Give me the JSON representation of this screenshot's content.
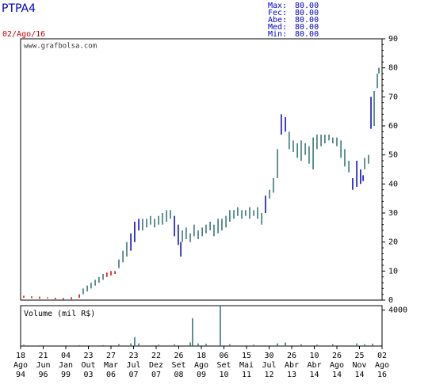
{
  "header": {
    "date": "02/Ago/16",
    "stats": [
      {
        "label": "Max:",
        "value": "80.00"
      },
      {
        "label": "Fec:",
        "value": "80.00"
      },
      {
        "label": "Abe:",
        "value": "80.00"
      },
      {
        "label": "Med:",
        "value": "80.00"
      },
      {
        "label": "Min:",
        "value": "80.00"
      }
    ]
  },
  "chart_data": [
    {
      "type": "hilo",
      "title": "PTPA4",
      "watermark": "www.grafbolsa.com",
      "xlim": [
        0,
        16
      ],
      "ylim": [
        0,
        90
      ],
      "yticks": [
        0,
        10,
        20,
        30,
        40,
        50,
        60,
        70,
        80,
        90
      ],
      "series": [
        {
          "color": "#cc0000",
          "x": [
            0.14,
            0.49,
            0.84,
            1.19,
            1.54,
            1.89,
            2.25,
            2.6,
            3.82,
            4.0,
            4.18
          ],
          "high": [
            1.5,
            1.3,
            1.2,
            1.0,
            0.8,
            0.7,
            1.0,
            2.0,
            9.5,
            10,
            10
          ],
          "low": [
            0.8,
            0.7,
            0.5,
            0.6,
            0.3,
            0.2,
            0.3,
            0.8,
            8,
            8.5,
            9
          ]
        },
        {
          "color": "#2f6f6f",
          "x": [
            2.77,
            2.95,
            3.12,
            3.3,
            3.47,
            3.65,
            4.35,
            4.53,
            4.7,
            5.4,
            5.58,
            5.75,
            5.93,
            6.11,
            6.28,
            6.46,
            6.63,
            7.16,
            7.33,
            7.51,
            7.68,
            7.86,
            8.04,
            8.21,
            8.39,
            8.56,
            8.74,
            8.91,
            9.09,
            9.26,
            9.44,
            9.61,
            9.79,
            9.96,
            10.14,
            10.32,
            10.49,
            10.67,
            11.02,
            11.19,
            11.37,
            11.89,
            12.07,
            12.25,
            12.42,
            12.6,
            12.77,
            12.95,
            13.12,
            13.3,
            13.47,
            13.65,
            13.82,
            14.0,
            14.18,
            14.35,
            14.53,
            15.23,
            15.4,
            15.65,
            15.79,
            15.86
          ],
          "high": [
            4,
            5,
            6,
            7,
            8,
            9,
            14,
            17,
            20,
            28,
            28,
            29,
            28,
            29,
            30,
            31,
            31,
            24,
            25,
            23,
            26,
            24,
            25,
            26,
            27,
            26,
            28,
            28,
            29,
            31,
            31,
            32,
            31,
            31,
            32,
            31,
            32,
            30,
            38,
            42,
            52,
            58,
            55,
            54,
            55,
            54,
            53,
            56,
            57,
            57,
            57,
            57,
            56,
            56,
            55,
            52,
            48,
            49,
            50,
            72,
            78,
            80
          ],
          "low": [
            2,
            3,
            4,
            5,
            6,
            7,
            11,
            13,
            15,
            24,
            25,
            26,
            25,
            26,
            26,
            27,
            28,
            20,
            21,
            20,
            22,
            21,
            22,
            23,
            24,
            22,
            23,
            24,
            25,
            27,
            28,
            29,
            28,
            29,
            28,
            29,
            28,
            26,
            35,
            37,
            42,
            52,
            51,
            49,
            48,
            50,
            47,
            45,
            52,
            53,
            54,
            55,
            54,
            53,
            49,
            46,
            44,
            45,
            47,
            60,
            73,
            78
          ]
        },
        {
          "color": "#0000cc",
          "x": [
            4.88,
            5.05,
            5.23,
            6.81,
            6.98,
            7.09,
            10.84,
            11.54,
            11.72,
            14.7,
            14.88,
            15.05,
            15.16,
            15.51
          ],
          "high": [
            23,
            27,
            28,
            29,
            26,
            20,
            36,
            64,
            63,
            42,
            48,
            45,
            43,
            70
          ],
          "low": [
            17,
            20,
            24,
            22,
            19,
            15,
            30,
            57,
            58,
            38,
            39,
            40,
            41,
            59
          ]
        }
      ]
    },
    {
      "type": "bar",
      "label": "Volume (mil R$)",
      "color": "#2f6f6f",
      "xlim": [
        0,
        16
      ],
      "ylim": [
        0,
        4500
      ],
      "yticks": [
        4000
      ],
      "x": [
        0.14,
        0.84,
        2.6,
        3.65,
        4.35,
        4.88,
        5.05,
        5.23,
        6.11,
        6.81,
        7.51,
        7.61,
        7.86,
        8.21,
        8.84,
        9.26,
        10.32,
        11.37,
        11.72,
        12.42,
        13.12,
        13.82,
        14.88,
        15.23,
        15.58
      ],
      "values": [
        150,
        80,
        100,
        100,
        200,
        300,
        1000,
        300,
        150,
        200,
        400,
        3100,
        300,
        250,
        4500,
        200,
        150,
        300,
        400,
        200,
        150,
        200,
        300,
        200,
        250
      ],
      "xticks": [
        {
          "value": 0,
          "label": [
            "18",
            "Ago",
            "94"
          ]
        },
        {
          "value": 1,
          "label": [
            "21",
            "Jun",
            "96"
          ]
        },
        {
          "value": 2,
          "label": [
            "04",
            "Jan",
            "99"
          ]
        },
        {
          "value": 3,
          "label": [
            "23",
            "Out",
            "03"
          ]
        },
        {
          "value": 4,
          "label": [
            "27",
            "Mar",
            "06"
          ]
        },
        {
          "value": 5,
          "label": [
            "23",
            "Jul",
            "07"
          ]
        },
        {
          "value": 6,
          "label": [
            "22",
            "Dez",
            "07"
          ]
        },
        {
          "value": 7,
          "label": [
            "26",
            "Set",
            "08"
          ]
        },
        {
          "value": 8,
          "label": [
            "18",
            "Ago",
            "09"
          ]
        },
        {
          "value": 9,
          "label": [
            "06",
            "Set",
            "10"
          ]
        },
        {
          "value": 10,
          "label": [
            "15",
            "Mai",
            "11"
          ]
        },
        {
          "value": 11,
          "label": [
            "30",
            "Jul",
            "12"
          ]
        },
        {
          "value": 12,
          "label": [
            "26",
            "Abr",
            "13"
          ]
        },
        {
          "value": 13,
          "label": [
            "10",
            "Abr",
            "14"
          ]
        },
        {
          "value": 14,
          "label": [
            "26",
            "Ago",
            "14"
          ]
        },
        {
          "value": 15,
          "label": [
            "25",
            "Nov",
            "14"
          ]
        },
        {
          "value": 16,
          "label": [
            "02",
            "Ago",
            "16"
          ]
        }
      ]
    }
  ]
}
